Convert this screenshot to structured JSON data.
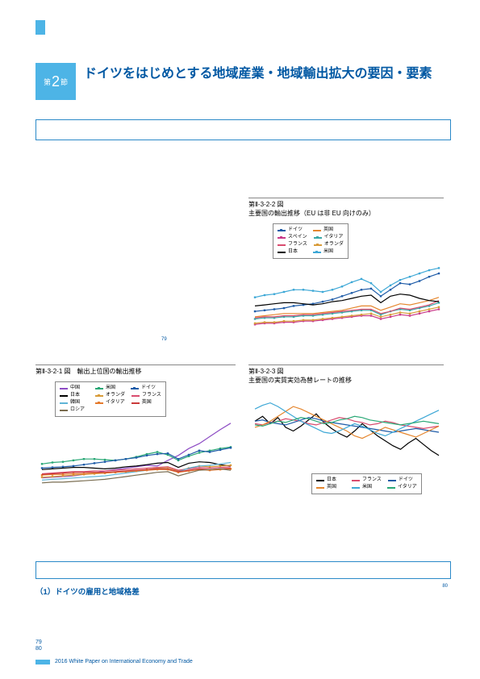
{
  "section": {
    "prefix": "第",
    "number": "2",
    "suffix": "節"
  },
  "title": "ドイツをはじめとする地域産業・地域輸出拡大の要因・要素",
  "subhead2": "（1）ドイツの雇用と地域格差",
  "pagenums": {
    "a": "79",
    "b": "80"
  },
  "footer": "2016 White Paper on International Economy and Trade",
  "note80": "80",
  "note79": "79",
  "chart1": {
    "id": "第Ⅱ-3-2-1 図",
    "title": "輸出上位国の輸出推移",
    "legend_top_offset": 6,
    "series": [
      {
        "label": "中国",
        "color": "#8d4cc4",
        "marker": false,
        "data": [
          13,
          14,
          15,
          16,
          18,
          20,
          23,
          25,
          27,
          29,
          31,
          30,
          38,
          45,
          55,
          62,
          72,
          82,
          91
        ]
      },
      {
        "label": "米国",
        "color": "#2aa876",
        "marker": true,
        "data": [
          33,
          35,
          36,
          38,
          40,
          40,
          39,
          38,
          40,
          43,
          47,
          50,
          46,
          38,
          44,
          49,
          52,
          55,
          57
        ]
      },
      {
        "label": "ドイツ",
        "color": "#1f5ca8",
        "marker": true,
        "data": [
          27,
          28,
          29,
          30,
          32,
          34,
          36,
          38,
          40,
          42,
          45,
          47,
          48,
          40,
          46,
          52,
          50,
          53,
          56
        ]
      },
      {
        "label": "日本",
        "color": "#000000",
        "marker": false,
        "data": [
          25,
          26,
          27,
          28,
          28,
          27,
          26,
          27,
          29,
          30,
          32,
          34,
          35,
          28,
          34,
          36,
          35,
          32,
          30
        ]
      },
      {
        "label": "オランダ",
        "color": "#d89c3a",
        "marker": true,
        "data": [
          14,
          15,
          16,
          17,
          18,
          19,
          20,
          21,
          22,
          23,
          25,
          27,
          28,
          23,
          27,
          30,
          29,
          30,
          31
        ]
      },
      {
        "label": "フランス",
        "color": "#d94c6f",
        "marker": false,
        "data": [
          19,
          20,
          21,
          22,
          22,
          23,
          23,
          24,
          25,
          26,
          27,
          28,
          29,
          24,
          26,
          28,
          27,
          28,
          29
        ]
      },
      {
        "label": "韓国",
        "color": "#5fb4d6",
        "marker": false,
        "data": [
          10,
          11,
          12,
          13,
          14,
          15,
          16,
          18,
          20,
          22,
          24,
          26,
          25,
          22,
          27,
          30,
          31,
          33,
          35
        ]
      },
      {
        "label": "イタリア",
        "color": "#e57b2e",
        "marker": true,
        "data": [
          17,
          18,
          18,
          19,
          19,
          20,
          20,
          21,
          22,
          23,
          24,
          25,
          25,
          21,
          23,
          25,
          24,
          25,
          26
        ]
      },
      {
        "label": "英国",
        "color": "#c93a3a",
        "marker": false,
        "data": [
          18,
          19,
          20,
          21,
          21,
          21,
          21,
          22,
          23,
          24,
          25,
          26,
          26,
          22,
          24,
          26,
          25,
          26,
          27
        ]
      },
      {
        "label": "ロシア",
        "color": "#7a6d50",
        "marker": false,
        "data": [
          6,
          7,
          7,
          8,
          9,
          10,
          11,
          13,
          15,
          17,
          19,
          21,
          22,
          16,
          20,
          24,
          25,
          26,
          24
        ]
      }
    ],
    "xdomain": [
      0,
      18
    ],
    "ydomain": [
      0,
      100
    ]
  },
  "chart2": {
    "id": "第Ⅱ-3-2-2 図",
    "title": "主要国の輸出推移（EU は非 EU 向けのみ）",
    "series": [
      {
        "label": "ドイツ",
        "color": "#1f5ca8",
        "marker": true,
        "data": [
          20,
          21,
          22,
          23,
          25,
          26,
          27,
          29,
          31,
          34,
          37,
          40,
          41,
          34,
          40,
          46,
          45,
          48,
          52,
          55
        ]
      },
      {
        "label": "英国",
        "color": "#e5862e",
        "marker": false,
        "data": [
          15,
          16,
          17,
          18,
          18,
          18,
          18,
          19,
          20,
          21,
          23,
          25,
          25,
          21,
          24,
          27,
          26,
          28,
          30,
          33
        ]
      },
      {
        "label": "スペイン",
        "color": "#c93a8a",
        "marker": true,
        "data": [
          8,
          9,
          9,
          10,
          10,
          11,
          11,
          12,
          13,
          14,
          15,
          16,
          16,
          13,
          15,
          17,
          16,
          18,
          20,
          22
        ]
      },
      {
        "label": "イタリア",
        "color": "#3aa8a8",
        "marker": true,
        "data": [
          13,
          14,
          14,
          15,
          15,
          16,
          16,
          17,
          18,
          19,
          20,
          21,
          21,
          17,
          20,
          22,
          21,
          23,
          25,
          28
        ]
      },
      {
        "label": "フランス",
        "color": "#d94c6f",
        "marker": false,
        "data": [
          14,
          15,
          15,
          16,
          16,
          17,
          17,
          18,
          19,
          20,
          21,
          22,
          22,
          18,
          20,
          23,
          22,
          24,
          26,
          30
        ]
      },
      {
        "label": "オランダ",
        "color": "#d89c3a",
        "marker": true,
        "data": [
          9,
          10,
          10,
          11,
          11,
          12,
          12,
          13,
          14,
          15,
          16,
          17,
          18,
          15,
          17,
          19,
          18,
          20,
          22,
          24
        ]
      },
      {
        "label": "日本",
        "color": "#000000",
        "marker": false,
        "data": [
          25,
          26,
          27,
          28,
          28,
          27,
          26,
          27,
          29,
          30,
          32,
          34,
          35,
          28,
          34,
          36,
          35,
          32,
          30,
          29
        ]
      },
      {
        "label": "米国",
        "color": "#3ea8d6",
        "marker": true,
        "data": [
          33,
          35,
          36,
          38,
          40,
          40,
          39,
          38,
          40,
          43,
          47,
          50,
          46,
          38,
          44,
          49,
          52,
          55,
          58,
          60
        ]
      }
    ],
    "xdomain": [
      0,
      19
    ],
    "ydomain": [
      0,
      70
    ]
  },
  "chart3": {
    "id": "第Ⅱ-3-2-3 図",
    "title": "主要国の実質実効為替レートの推移",
    "series": [
      {
        "label": "日本",
        "color": "#000000",
        "data": [
          100,
          104,
          98,
          103,
          95,
          92,
          96,
          101,
          106,
          99,
          94,
          90,
          87,
          92,
          98,
          93,
          88,
          84,
          80,
          77,
          82,
          86,
          81,
          76,
          72
        ]
      },
      {
        "label": "フランス",
        "color": "#d94c6f",
        "data": [
          98,
          97,
          99,
          100,
          102,
          101,
          100,
          98,
          97,
          99,
          101,
          103,
          102,
          100,
          99,
          97,
          98,
          100,
          99,
          97,
          96,
          95,
          94,
          95,
          96
        ]
      },
      {
        "label": "ドイツ",
        "color": "#1f5ca8",
        "data": [
          100,
          101,
          99,
          98,
          97,
          99,
          101,
          103,
          102,
          100,
          99,
          98,
          97,
          96,
          95,
          94,
          93,
          92,
          91,
          92,
          93,
          94,
          93,
          92,
          91
        ]
      },
      {
        "label": "英国",
        "color": "#e5862e",
        "data": [
          95,
          97,
          100,
          104,
          108,
          112,
          110,
          107,
          104,
          101,
          98,
          95,
          92,
          88,
          86,
          89,
          92,
          95,
          93,
          91,
          89,
          87,
          90,
          93,
          96
        ]
      },
      {
        "label": "米国",
        "color": "#3ea8d6",
        "data": [
          110,
          113,
          115,
          112,
          108,
          104,
          100,
          97,
          94,
          91,
          90,
          92,
          95,
          98,
          96,
          93,
          90,
          88,
          91,
          94,
          97,
          100,
          103,
          106,
          109
        ]
      },
      {
        "label": "イタリア",
        "color": "#2aa876",
        "data": [
          97,
          96,
          98,
          100,
          99,
          101,
          103,
          102,
          100,
          98,
          99,
          101,
          102,
          104,
          103,
          101,
          100,
          99,
          98,
          97,
          98,
          99,
          100,
          99,
          98
        ]
      }
    ],
    "xdomain": [
      0,
      24
    ],
    "ydomain": [
      60,
      120
    ]
  }
}
